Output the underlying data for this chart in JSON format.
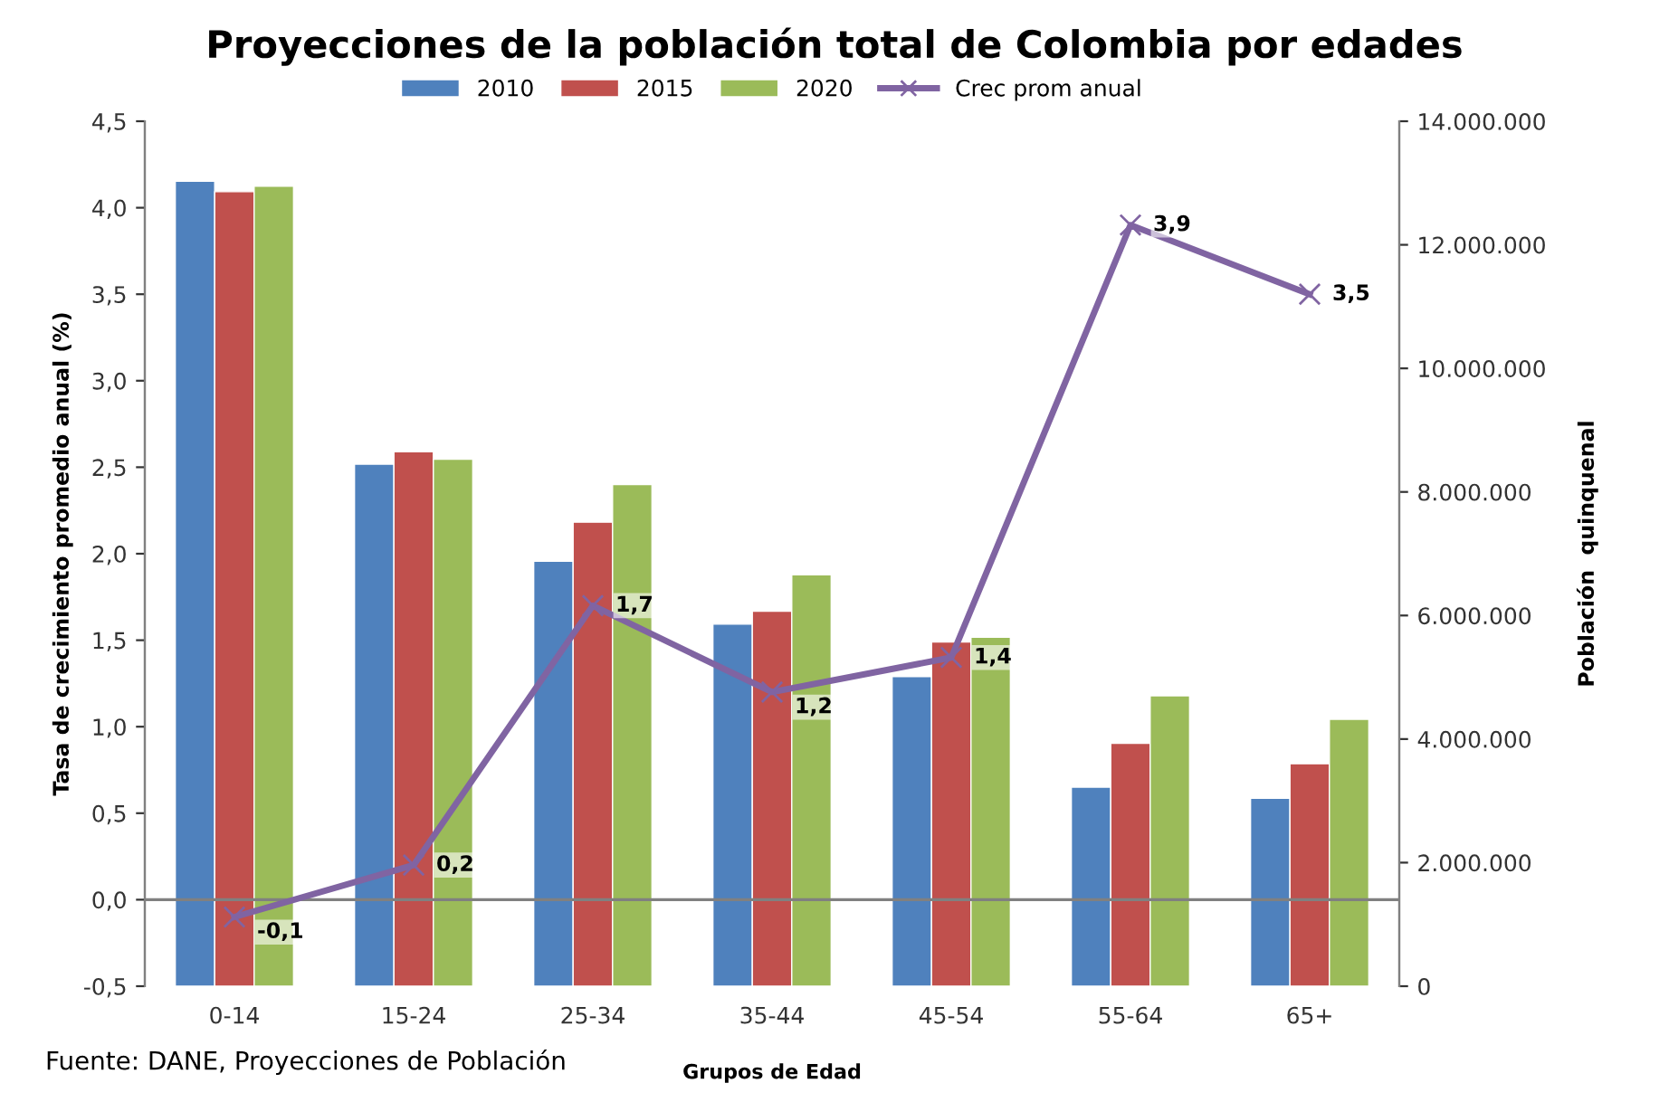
{
  "chart_data": {
    "type": "bar",
    "title": "Proyecciones de la población total de Colombia por edades",
    "xlabel": "Grupos de Edad",
    "ylabel": "Tasa de crecimiento promedio anual (%)",
    "y2label": "Población  quinquenal",
    "categories": [
      "0-14",
      "15-24",
      "25-34",
      "35-44",
      "45-54",
      "55-64",
      "65+"
    ],
    "series": [
      {
        "name": "2010",
        "axis": "y2",
        "color": "#4f81bd",
        "values": [
          13030000,
          8450000,
          6880000,
          5860000,
          5010000,
          3220000,
          3040000
        ]
      },
      {
        "name": "2015",
        "axis": "y2",
        "color": "#c0504d",
        "values": [
          12860000,
          8650000,
          7510000,
          6070000,
          5570000,
          3930000,
          3600000
        ]
      },
      {
        "name": "2020",
        "axis": "y2",
        "color": "#9bbb59",
        "values": [
          12950000,
          8530000,
          8120000,
          6660000,
          5650000,
          4700000,
          4320000
        ]
      },
      {
        "name": "Crec prom anual",
        "type": "line",
        "axis": "y",
        "color": "#8064a2",
        "marker": "cross",
        "values": [
          -0.1,
          0.2,
          1.7,
          1.2,
          1.4,
          3.9,
          3.5
        ],
        "value_labels": [
          "-0,1",
          "0,2",
          "1,7",
          "1,2",
          "1,4",
          "3,9",
          "3,5"
        ]
      }
    ],
    "ylim": [
      -0.5,
      4.5
    ],
    "yticks": [
      {
        "value": -0.5,
        "label": "-0,5"
      },
      {
        "value": 0,
        "label": "0,0"
      },
      {
        "value": 0.5,
        "label": "0,5"
      },
      {
        "value": 1,
        "label": "1,0"
      },
      {
        "value": 1.5,
        "label": "1,5"
      },
      {
        "value": 2,
        "label": "2,0"
      },
      {
        "value": 2.5,
        "label": "2,5"
      },
      {
        "value": 3,
        "label": "3,0"
      },
      {
        "value": 3.5,
        "label": "3,5"
      },
      {
        "value": 4,
        "label": "4,0"
      },
      {
        "value": 4.5,
        "label": "4,5"
      }
    ],
    "y2lim": [
      0,
      14000000
    ],
    "y2ticks": [
      {
        "value": 0,
        "label": "0"
      },
      {
        "value": 2000000,
        "label": "2.000.000"
      },
      {
        "value": 4000000,
        "label": "4.000.000"
      },
      {
        "value": 6000000,
        "label": "6.000.000"
      },
      {
        "value": 8000000,
        "label": "8.000.000"
      },
      {
        "value": 10000000,
        "label": "10.000.000"
      },
      {
        "value": 12000000,
        "label": "12.000.000"
      },
      {
        "value": 14000000,
        "label": "14.000.000"
      }
    ],
    "ref_lines": [
      {
        "axis": "y",
        "value": 0,
        "color": "#808080"
      }
    ],
    "legend": "top",
    "grid": false,
    "annotations": [
      "Fuente: DANE, Proyecciones de Población"
    ]
  }
}
